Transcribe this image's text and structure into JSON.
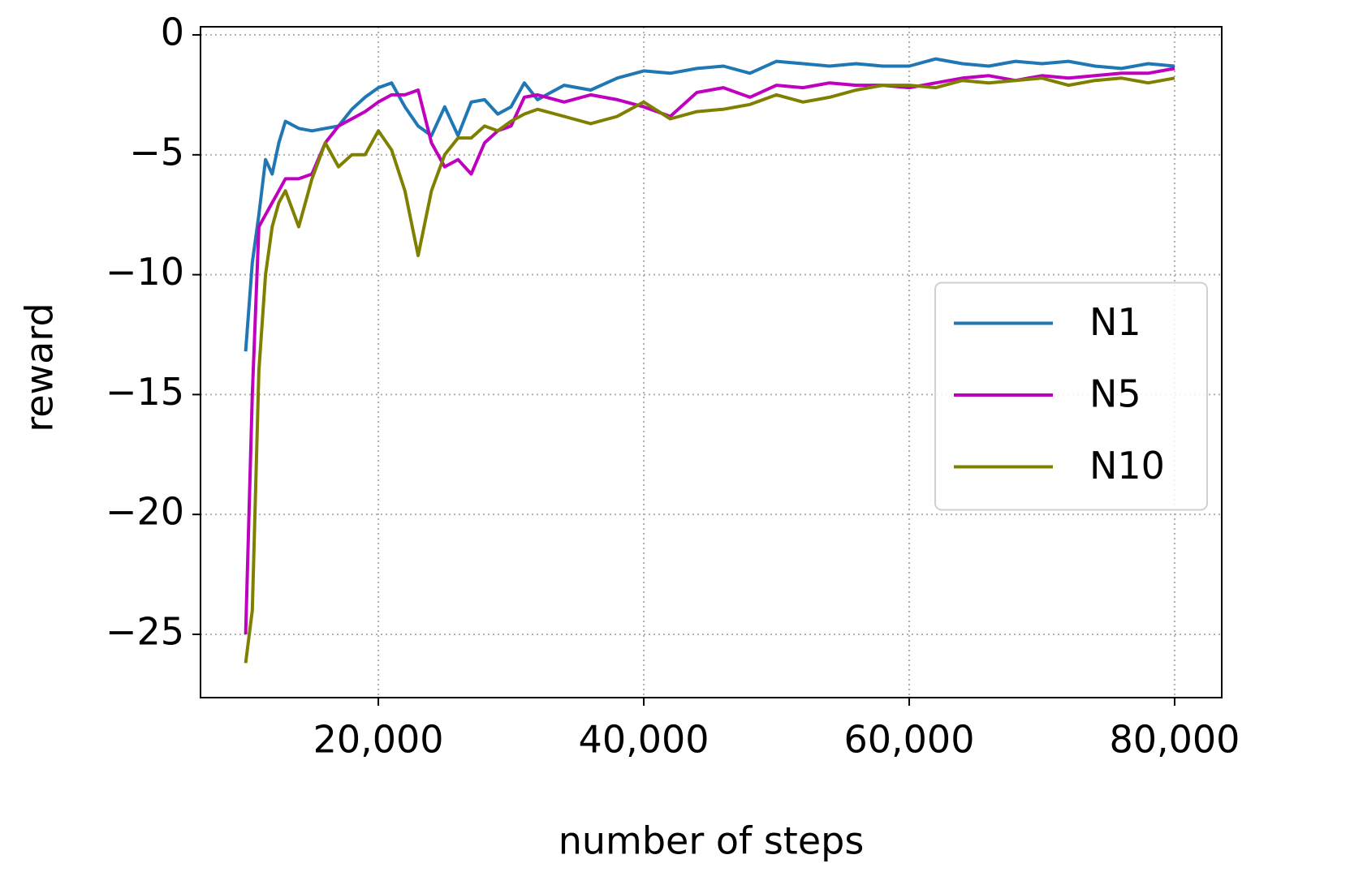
{
  "chart_data": {
    "type": "line",
    "xlabel": "number of steps",
    "ylabel": "reward",
    "x": [
      10000,
      10500,
      11000,
      11500,
      12000,
      12500,
      13000,
      14000,
      15000,
      16000,
      17000,
      18000,
      19000,
      20000,
      21000,
      22000,
      23000,
      24000,
      25000,
      26000,
      27000,
      28000,
      29000,
      30000,
      31000,
      32000,
      34000,
      36000,
      38000,
      40000,
      42000,
      44000,
      46000,
      48000,
      50000,
      52000,
      54000,
      56000,
      58000,
      60000,
      62000,
      64000,
      66000,
      68000,
      70000,
      72000,
      74000,
      76000,
      78000,
      80000
    ],
    "series": [
      {
        "name": "N1",
        "color": "#1f77b4",
        "values": [
          -13.2,
          -9.5,
          -7.5,
          -5.2,
          -5.8,
          -4.5,
          -3.6,
          -3.9,
          -4.0,
          -3.9,
          -3.8,
          -3.1,
          -2.6,
          -2.2,
          -2.0,
          -3.0,
          -3.8,
          -4.2,
          -3.0,
          -4.2,
          -2.8,
          -2.7,
          -3.3,
          -3.0,
          -2.0,
          -2.7,
          -2.1,
          -2.3,
          -1.8,
          -1.5,
          -1.6,
          -1.4,
          -1.3,
          -1.6,
          -1.1,
          -1.2,
          -1.3,
          -1.2,
          -1.3,
          -1.3,
          -1.0,
          -1.2,
          -1.3,
          -1.1,
          -1.2,
          -1.1,
          -1.3,
          -1.4,
          -1.2,
          -1.3
        ]
      },
      {
        "name": "N5",
        "color": "#bf00bf",
        "values": [
          -25.0,
          -15.0,
          -8.0,
          -7.5,
          -7.0,
          -6.5,
          -6.0,
          -6.0,
          -5.8,
          -4.5,
          -3.8,
          -3.5,
          -3.2,
          -2.8,
          -2.5,
          -2.5,
          -2.3,
          -4.5,
          -5.5,
          -5.2,
          -5.8,
          -4.5,
          -4.0,
          -3.8,
          -2.6,
          -2.5,
          -2.8,
          -2.5,
          -2.7,
          -3.0,
          -3.4,
          -2.4,
          -2.2,
          -2.6,
          -2.1,
          -2.2,
          -2.0,
          -2.1,
          -2.1,
          -2.2,
          -2.0,
          -1.8,
          -1.7,
          -1.9,
          -1.7,
          -1.8,
          -1.7,
          -1.6,
          -1.6,
          -1.4
        ]
      },
      {
        "name": "N10",
        "color": "#808000",
        "values": [
          -26.2,
          -24.0,
          -14.0,
          -10.0,
          -8.0,
          -7.0,
          -6.5,
          -8.0,
          -6.0,
          -4.5,
          -5.5,
          -5.0,
          -5.0,
          -4.0,
          -4.8,
          -6.5,
          -9.2,
          -6.5,
          -5.0,
          -4.3,
          -4.3,
          -3.8,
          -4.0,
          -3.6,
          -3.3,
          -3.1,
          -3.4,
          -3.7,
          -3.4,
          -2.8,
          -3.5,
          -3.2,
          -3.1,
          -2.9,
          -2.5,
          -2.8,
          -2.6,
          -2.3,
          -2.1,
          -2.1,
          -2.2,
          -1.9,
          -2.0,
          -1.9,
          -1.8,
          -2.1,
          -1.9,
          -1.8,
          -2.0,
          -1.8
        ]
      }
    ],
    "xlim": [
      6600,
      83550
    ],
    "xticks": [
      {
        "value": 20000,
        "label": "20,000"
      },
      {
        "value": 40000,
        "label": "40,000"
      },
      {
        "value": 60000,
        "label": "60,000"
      },
      {
        "value": 80000,
        "label": "80,000"
      }
    ],
    "ylim": [
      -27.64,
      0.34
    ],
    "yticks": [
      0,
      {
        "value": -5,
        "label": "−5"
      },
      {
        "value": -10,
        "label": "−10"
      },
      {
        "value": -15,
        "label": "−15"
      },
      {
        "value": -20,
        "label": "−20"
      },
      {
        "value": -25,
        "label": "−25"
      }
    ],
    "grid": true,
    "legend": "center right"
  }
}
